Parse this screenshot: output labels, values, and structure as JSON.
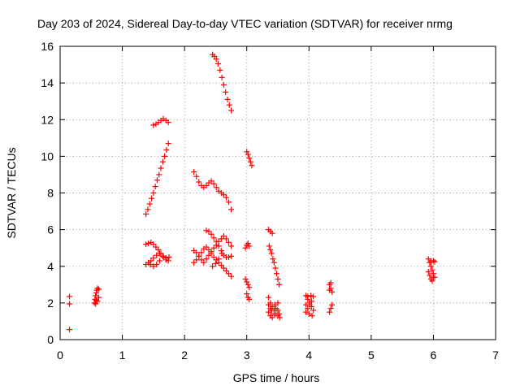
{
  "chart_data": {
    "type": "scatter",
    "title": "Day 203 of 2024, Sidereal Day-to-day VTEC variation (SDTVAR) for receiver nrmg",
    "xlabel": "GPS time / hours",
    "ylabel": "SDTVAR / TECUs",
    "xlim": [
      0,
      7
    ],
    "ylim": [
      0,
      16
    ],
    "xticks": [
      "0",
      "1",
      "2",
      "3",
      "4",
      "5",
      "6",
      "7"
    ],
    "yticks": [
      "0",
      "2",
      "4",
      "6",
      "8",
      "10",
      "12",
      "14",
      "16"
    ],
    "grid": true,
    "marker": "plus",
    "color": "#ff0000",
    "points": [
      [
        0.15,
        2.35
      ],
      [
        0.15,
        1.95
      ],
      [
        0.15,
        0.55
      ],
      [
        0.55,
        2.0
      ],
      [
        0.56,
        2.2
      ],
      [
        0.57,
        2.4
      ],
      [
        0.58,
        2.55
      ],
      [
        0.59,
        2.7
      ],
      [
        0.6,
        2.8
      ],
      [
        0.62,
        2.75
      ],
      [
        0.57,
        1.95
      ],
      [
        0.6,
        2.1
      ],
      [
        0.62,
        2.3
      ],
      [
        0.58,
        2.15
      ],
      [
        1.38,
        6.85
      ],
      [
        1.41,
        7.1
      ],
      [
        1.44,
        7.4
      ],
      [
        1.47,
        7.7
      ],
      [
        1.5,
        8.0
      ],
      [
        1.53,
        8.35
      ],
      [
        1.56,
        8.7
      ],
      [
        1.59,
        9.0
      ],
      [
        1.62,
        9.35
      ],
      [
        1.65,
        9.7
      ],
      [
        1.68,
        10.0
      ],
      [
        1.71,
        10.35
      ],
      [
        1.74,
        10.7
      ],
      [
        1.5,
        11.7
      ],
      [
        1.54,
        11.75
      ],
      [
        1.58,
        11.85
      ],
      [
        1.62,
        11.95
      ],
      [
        1.66,
        12.05
      ],
      [
        1.7,
        11.95
      ],
      [
        1.74,
        11.85
      ],
      [
        1.38,
        4.1
      ],
      [
        1.42,
        4.2
      ],
      [
        1.46,
        4.3
      ],
      [
        1.5,
        4.45
      ],
      [
        1.55,
        4.6
      ],
      [
        1.6,
        4.7
      ],
      [
        1.65,
        4.55
      ],
      [
        1.7,
        4.45
      ],
      [
        1.75,
        4.5
      ],
      [
        1.38,
        5.2
      ],
      [
        1.42,
        5.25
      ],
      [
        1.46,
        5.3
      ],
      [
        1.5,
        5.2
      ],
      [
        1.54,
        5.05
      ],
      [
        1.58,
        4.9
      ],
      [
        1.62,
        4.7
      ],
      [
        1.66,
        4.5
      ],
      [
        1.7,
        4.35
      ],
      [
        1.74,
        4.3
      ],
      [
        1.45,
        4.1
      ],
      [
        1.5,
        4.0
      ],
      [
        1.55,
        4.1
      ],
      [
        1.6,
        4.3
      ],
      [
        2.15,
        9.15
      ],
      [
        2.19,
        8.9
      ],
      [
        2.23,
        8.6
      ],
      [
        2.27,
        8.4
      ],
      [
        2.31,
        8.3
      ],
      [
        2.35,
        8.4
      ],
      [
        2.39,
        8.55
      ],
      [
        2.43,
        8.65
      ],
      [
        2.47,
        8.5
      ],
      [
        2.51,
        8.3
      ],
      [
        2.55,
        8.1
      ],
      [
        2.59,
        8.0
      ],
      [
        2.63,
        7.9
      ],
      [
        2.67,
        7.75
      ],
      [
        2.71,
        7.5
      ],
      [
        2.75,
        7.1
      ],
      [
        2.45,
        15.55
      ],
      [
        2.48,
        15.45
      ],
      [
        2.51,
        15.3
      ],
      [
        2.54,
        15.05
      ],
      [
        2.57,
        14.7
      ],
      [
        2.6,
        14.3
      ],
      [
        2.63,
        13.9
      ],
      [
        2.66,
        13.5
      ],
      [
        2.69,
        13.1
      ],
      [
        2.72,
        12.8
      ],
      [
        2.75,
        12.5
      ],
      [
        2.15,
        4.2
      ],
      [
        2.19,
        4.35
      ],
      [
        2.23,
        4.55
      ],
      [
        2.27,
        4.75
      ],
      [
        2.31,
        4.95
      ],
      [
        2.35,
        5.05
      ],
      [
        2.39,
        4.9
      ],
      [
        2.43,
        4.7
      ],
      [
        2.47,
        4.5
      ],
      [
        2.51,
        4.35
      ],
      [
        2.55,
        4.2
      ],
      [
        2.59,
        4.05
      ],
      [
        2.63,
        3.9
      ],
      [
        2.67,
        3.75
      ],
      [
        2.71,
        3.6
      ],
      [
        2.75,
        3.45
      ],
      [
        2.15,
        4.85
      ],
      [
        2.19,
        4.75
      ],
      [
        2.23,
        4.55
      ],
      [
        2.27,
        4.35
      ],
      [
        2.31,
        4.2
      ],
      [
        2.35,
        4.4
      ],
      [
        2.39,
        4.6
      ],
      [
        2.43,
        4.8
      ],
      [
        2.47,
        5.0
      ],
      [
        2.51,
        5.15
      ],
      [
        2.55,
        5.35
      ],
      [
        2.59,
        5.5
      ],
      [
        2.63,
        5.65
      ],
      [
        2.67,
        5.5
      ],
      [
        2.71,
        5.3
      ],
      [
        2.75,
        5.1
      ],
      [
        2.35,
        5.95
      ],
      [
        2.39,
        5.9
      ],
      [
        2.43,
        5.75
      ],
      [
        2.47,
        5.55
      ],
      [
        2.51,
        5.35
      ],
      [
        2.55,
        5.1
      ],
      [
        2.59,
        4.85
      ],
      [
        2.63,
        4.6
      ],
      [
        2.67,
        4.5
      ],
      [
        2.71,
        4.5
      ],
      [
        2.75,
        4.55
      ],
      [
        2.45,
        4.0
      ],
      [
        2.5,
        4.15
      ],
      [
        2.55,
        4.4
      ],
      [
        2.6,
        4.7
      ],
      [
        3.0,
        10.25
      ],
      [
        3.02,
        10.1
      ],
      [
        3.04,
        9.9
      ],
      [
        3.06,
        9.7
      ],
      [
        3.08,
        9.5
      ],
      [
        2.98,
        5.0
      ],
      [
        3.0,
        5.15
      ],
      [
        3.02,
        5.25
      ],
      [
        3.04,
        5.1
      ],
      [
        2.98,
        3.3
      ],
      [
        3.0,
        3.15
      ],
      [
        3.02,
        3.0
      ],
      [
        3.04,
        2.85
      ],
      [
        3.0,
        2.5
      ],
      [
        3.02,
        2.3
      ],
      [
        3.04,
        2.2
      ],
      [
        3.35,
        6.0
      ],
      [
        3.38,
        5.9
      ],
      [
        3.41,
        5.8
      ],
      [
        3.36,
        5.1
      ],
      [
        3.38,
        4.9
      ],
      [
        3.4,
        4.7
      ],
      [
        3.42,
        4.4
      ],
      [
        3.44,
        4.2
      ],
      [
        3.46,
        3.9
      ],
      [
        3.48,
        3.6
      ],
      [
        3.5,
        3.3
      ],
      [
        3.52,
        3.0
      ],
      [
        3.35,
        2.3
      ],
      [
        3.38,
        2.0
      ],
      [
        3.41,
        1.8
      ],
      [
        3.44,
        1.6
      ],
      [
        3.47,
        1.4
      ],
      [
        3.5,
        1.3
      ],
      [
        3.53,
        1.2
      ],
      [
        3.35,
        1.5
      ],
      [
        3.38,
        1.3
      ],
      [
        3.41,
        1.2
      ],
      [
        3.44,
        1.4
      ],
      [
        3.47,
        1.7
      ],
      [
        3.5,
        2.0
      ],
      [
        3.35,
        1.9
      ],
      [
        3.4,
        1.6
      ],
      [
        3.45,
        1.9
      ],
      [
        3.5,
        1.6
      ],
      [
        3.52,
        1.4
      ],
      [
        3.38,
        1.7
      ],
      [
        3.95,
        2.4
      ],
      [
        3.98,
        2.2
      ],
      [
        4.01,
        2.0
      ],
      [
        4.04,
        1.8
      ],
      [
        4.07,
        1.6
      ],
      [
        3.95,
        1.5
      ],
      [
        3.98,
        1.7
      ],
      [
        4.01,
        1.9
      ],
      [
        4.04,
        2.1
      ],
      [
        4.07,
        2.35
      ],
      [
        3.95,
        1.9
      ],
      [
        4.0,
        1.4
      ],
      [
        4.05,
        1.3
      ],
      [
        3.98,
        2.35
      ],
      [
        4.03,
        2.4
      ],
      [
        4.33,
        3.0
      ],
      [
        4.35,
        2.8
      ],
      [
        4.37,
        2.6
      ],
      [
        4.35,
        3.1
      ],
      [
        4.33,
        2.7
      ],
      [
        4.33,
        1.5
      ],
      [
        4.35,
        1.7
      ],
      [
        4.37,
        1.9
      ],
      [
        5.92,
        4.4
      ],
      [
        5.94,
        4.2
      ],
      [
        5.96,
        4.0
      ],
      [
        5.98,
        3.8
      ],
      [
        6.0,
        3.6
      ],
      [
        6.02,
        3.4
      ],
      [
        5.94,
        3.5
      ],
      [
        5.96,
        3.3
      ],
      [
        5.98,
        3.2
      ],
      [
        6.0,
        3.4
      ],
      [
        5.96,
        4.3
      ],
      [
        6.0,
        4.3
      ],
      [
        6.02,
        4.25
      ],
      [
        5.92,
        3.7
      ]
    ]
  }
}
